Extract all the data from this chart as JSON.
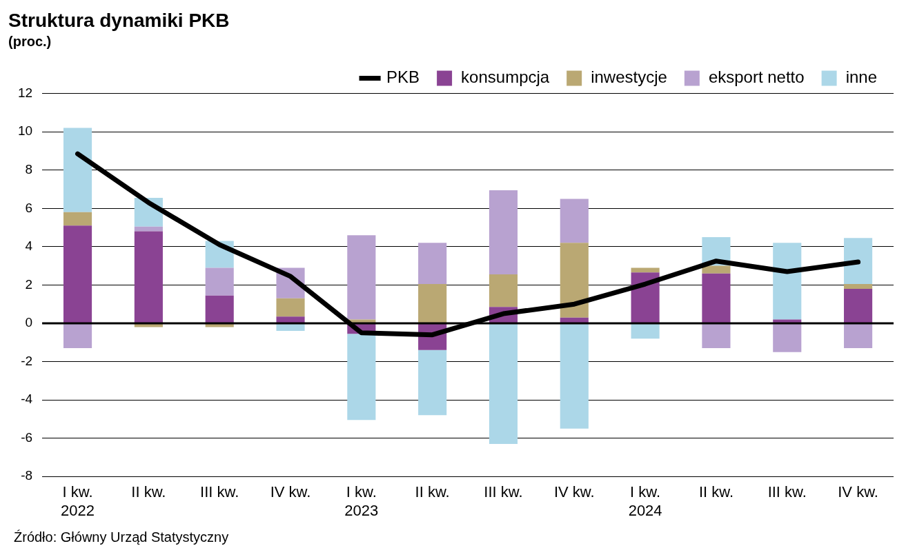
{
  "chart_data": {
    "type": "bar",
    "stacked": true,
    "title": "Struktura dynamiki PKB",
    "subtitle": "(proc.)",
    "categories": [
      "I kw.\n2022",
      "II kw.",
      "III kw.",
      "IV kw.",
      "I kw.\n2023",
      "II kw.",
      "III kw.",
      "IV kw.",
      "I kw.\n2024",
      "II kw.",
      "III kw.",
      "IV kw."
    ],
    "series": [
      {
        "name": "konsumpcja",
        "color": "#8a4393",
        "values": [
          5.1,
          4.8,
          1.45,
          0.35,
          -0.55,
          -1.4,
          0.85,
          0.3,
          2.65,
          2.6,
          0.2,
          1.8
        ]
      },
      {
        "name": "inwestycje",
        "color": "#baa873",
        "values": [
          0.7,
          -0.2,
          -0.2,
          0.95,
          0.2,
          2.05,
          1.7,
          3.9,
          0.25,
          0.4,
          0,
          0.25
        ]
      },
      {
        "name": "eksport netto",
        "color": "#b8a2d0",
        "values": [
          -1.3,
          0.25,
          1.45,
          1.6,
          4.4,
          2.15,
          4.4,
          2.3,
          null,
          -1.3,
          -1.5,
          -1.3
        ]
      },
      {
        "name": "inne",
        "color": "#acd7e8",
        "values": [
          4.4,
          1.5,
          1.4,
          -0.4,
          -4.5,
          -3.4,
          -6.3,
          -5.5,
          -0.8,
          1.5,
          4.0,
          2.4
        ]
      },
      {
        "name": "PKB",
        "type": "line",
        "color": "#000000",
        "values": [
          8.85,
          6.3,
          4.1,
          2.45,
          -0.5,
          -0.6,
          0.5,
          1.0,
          2.05,
          3.25,
          2.7,
          3.2
        ]
      }
    ],
    "ylim": [
      -8,
      12
    ],
    "yticks": [
      -8,
      -6,
      -4,
      -2,
      0,
      2,
      4,
      6,
      8,
      10,
      12
    ],
    "grid": "y",
    "legend": "top right",
    "annotations": [
      "Źródło: Główny Urząd Statystyczny"
    ]
  }
}
